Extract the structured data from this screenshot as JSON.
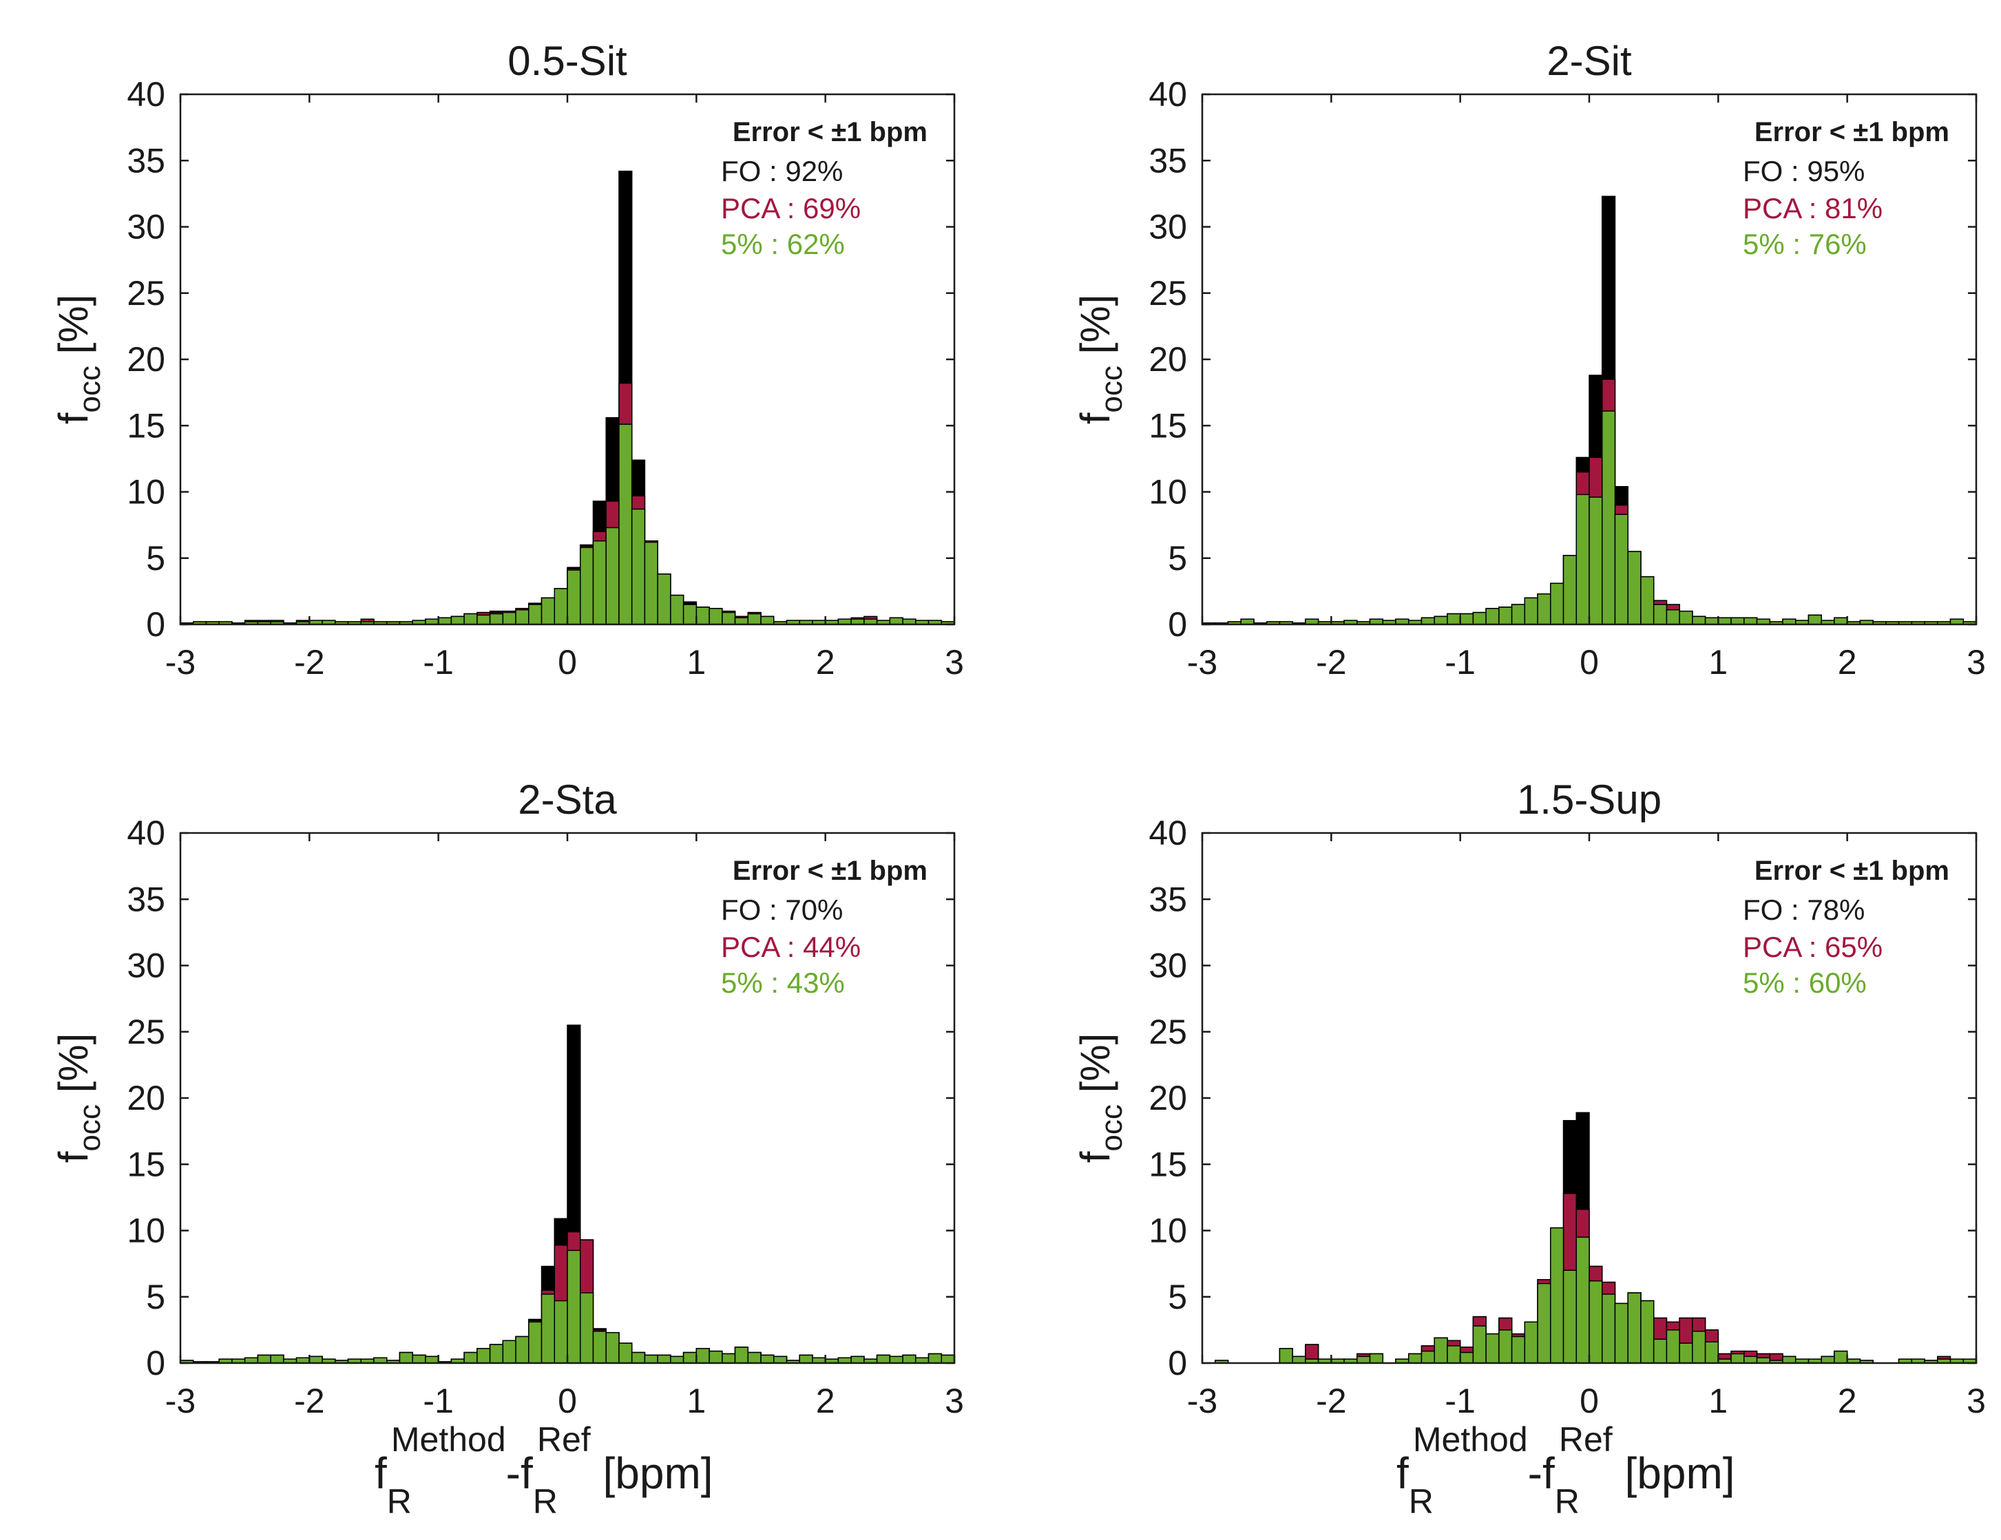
{
  "colors": {
    "fo": "#000000",
    "pca": "#a3173f",
    "five": "#6aab2e",
    "axis": "#1a1a1a"
  },
  "chart_data": [
    {
      "type": "bar",
      "title": "0.5-Sit",
      "ylabel": "f",
      "ylabel_sub": "occ",
      "ylabel_unit": "[%]",
      "xlim": [
        -3,
        3
      ],
      "ylim": [
        0,
        40
      ],
      "xticks": [
        "-3",
        "-2",
        "-1",
        "0",
        "1",
        "2",
        "3"
      ],
      "yticks": [
        "0",
        "5",
        "10",
        "15",
        "20",
        "25",
        "30",
        "35",
        "40"
      ],
      "bin_width": 0.1,
      "annotation": {
        "header": "Error < ±1 bpm",
        "fo": "FO : 92%",
        "pca": "PCA : 69%",
        "five": "5% : 62%"
      },
      "series": [
        {
          "name": "FO",
          "values": [
            0.1,
            0.2,
            0.2,
            0.2,
            0.1,
            0.3,
            0.3,
            0.3,
            0.1,
            0.3,
            0.3,
            0.3,
            0.2,
            0.2,
            0.3,
            0.2,
            0.2,
            0.2,
            0.3,
            0.4,
            0.5,
            0.6,
            0.8,
            0.9,
            1.0,
            1.0,
            1.2,
            1.6,
            2.0,
            2.7,
            4.3,
            6.0,
            9.3,
            15.6,
            34.2,
            12.4,
            6.3,
            3.8,
            2.2,
            1.7,
            1.3,
            1.2,
            1.0,
            0.6,
            0.9,
            0.6,
            0.2,
            0.3,
            0.3,
            0.3,
            0.3,
            0.4,
            0.4,
            0.5,
            0.3,
            0.5,
            0.4,
            0.3,
            0.3,
            0.2
          ]
        },
        {
          "name": "PCA",
          "values": [
            0.1,
            0.2,
            0.2,
            0.2,
            0.1,
            0.2,
            0.2,
            0.3,
            0.1,
            0.3,
            0.3,
            0.3,
            0.2,
            0.2,
            0.4,
            0.2,
            0.2,
            0.2,
            0.3,
            0.4,
            0.5,
            0.6,
            0.8,
            0.9,
            0.9,
            1.0,
            1.2,
            1.5,
            2.0,
            2.7,
            4.2,
            5.9,
            7.0,
            9.3,
            18.2,
            9.7,
            6.3,
            3.8,
            2.2,
            1.5,
            1.3,
            1.2,
            1.0,
            0.6,
            0.9,
            0.6,
            0.2,
            0.3,
            0.3,
            0.3,
            0.3,
            0.4,
            0.5,
            0.6,
            0.3,
            0.5,
            0.4,
            0.3,
            0.3,
            0.2
          ]
        },
        {
          "name": "5%",
          "values": [
            0.1,
            0.2,
            0.2,
            0.2,
            0.1,
            0.2,
            0.2,
            0.2,
            0.1,
            0.2,
            0.3,
            0.3,
            0.2,
            0.2,
            0.2,
            0.2,
            0.2,
            0.2,
            0.3,
            0.4,
            0.5,
            0.6,
            0.8,
            0.7,
            0.8,
            0.9,
            1.1,
            1.5,
            2.0,
            2.7,
            4.1,
            5.8,
            6.3,
            7.3,
            15.1,
            8.7,
            6.2,
            3.8,
            2.2,
            1.5,
            1.3,
            1.2,
            0.9,
            0.5,
            0.8,
            0.6,
            0.2,
            0.3,
            0.3,
            0.3,
            0.3,
            0.4,
            0.4,
            0.4,
            0.3,
            0.5,
            0.4,
            0.3,
            0.3,
            0.2
          ]
        }
      ]
    },
    {
      "type": "bar",
      "title": "2-Sit",
      "ylabel": "f",
      "ylabel_sub": "occ",
      "ylabel_unit": "[%]",
      "xlim": [
        -3,
        3
      ],
      "ylim": [
        0,
        40
      ],
      "xticks": [
        "-3",
        "-2",
        "-1",
        "0",
        "1",
        "2",
        "3"
      ],
      "yticks": [
        "0",
        "5",
        "10",
        "15",
        "20",
        "25",
        "30",
        "35",
        "40"
      ],
      "bin_width": 0.1,
      "annotation": {
        "header": "Error < ±1 bpm",
        "fo": "FO : 95%",
        "pca": "PCA : 81%",
        "five": "5% : 76%"
      },
      "series": [
        {
          "name": "FO",
          "values": [
            0.1,
            0.1,
            0.2,
            0.4,
            0.1,
            0.2,
            0.2,
            0.1,
            0.4,
            0.2,
            0.2,
            0.3,
            0.2,
            0.4,
            0.3,
            0.4,
            0.3,
            0.5,
            0.6,
            0.8,
            0.8,
            0.9,
            1.2,
            1.3,
            1.5,
            2.0,
            2.3,
            3.1,
            5.2,
            12.6,
            18.8,
            32.3,
            10.4,
            5.5,
            3.6,
            1.8,
            1.5,
            1.0,
            0.6,
            0.5,
            0.5,
            0.5,
            0.5,
            0.4,
            0.2,
            0.4,
            0.3,
            0.7,
            0.3,
            0.5,
            0.2,
            0.3,
            0.2,
            0.2,
            0.2,
            0.2,
            0.2,
            0.2,
            0.4,
            0.2
          ]
        },
        {
          "name": "PCA",
          "values": [
            0.1,
            0.1,
            0.2,
            0.4,
            0.1,
            0.2,
            0.2,
            0.1,
            0.4,
            0.2,
            0.2,
            0.3,
            0.2,
            0.4,
            0.3,
            0.4,
            0.3,
            0.5,
            0.6,
            0.8,
            0.8,
            0.9,
            1.2,
            1.3,
            1.5,
            2.0,
            2.3,
            3.1,
            5.2,
            11.5,
            12.6,
            18.5,
            9.0,
            5.5,
            3.6,
            1.8,
            1.5,
            1.0,
            0.6,
            0.5,
            0.5,
            0.5,
            0.5,
            0.4,
            0.2,
            0.4,
            0.3,
            0.7,
            0.3,
            0.5,
            0.2,
            0.3,
            0.2,
            0.2,
            0.2,
            0.2,
            0.2,
            0.2,
            0.4,
            0.2
          ]
        },
        {
          "name": "5%",
          "values": [
            0.1,
            0.1,
            0.2,
            0.4,
            0.1,
            0.2,
            0.2,
            0.1,
            0.4,
            0.2,
            0.2,
            0.3,
            0.2,
            0.4,
            0.3,
            0.4,
            0.3,
            0.5,
            0.6,
            0.8,
            0.8,
            0.9,
            1.2,
            1.3,
            1.5,
            2.0,
            2.3,
            3.1,
            5.2,
            9.8,
            9.6,
            16.1,
            8.3,
            5.5,
            3.6,
            1.5,
            1.1,
            1.0,
            0.6,
            0.5,
            0.5,
            0.5,
            0.5,
            0.4,
            0.2,
            0.4,
            0.3,
            0.7,
            0.3,
            0.5,
            0.2,
            0.3,
            0.2,
            0.2,
            0.2,
            0.2,
            0.2,
            0.2,
            0.4,
            0.2
          ]
        }
      ]
    },
    {
      "type": "bar",
      "title": "2-Sta",
      "ylabel": "f",
      "ylabel_sub": "occ",
      "ylabel_unit": "[%]",
      "xlabel_main": "f",
      "xlabel_sub": "R",
      "xlabel_sup": "Method",
      "xlabel_sep": "-f",
      "xlabel_sub2": "R",
      "xlabel_sup2": "Ref",
      "xlabel_unit": "[bpm]",
      "xlim": [
        -3,
        3
      ],
      "ylim": [
        0,
        40
      ],
      "xticks": [
        "-3",
        "-2",
        "-1",
        "0",
        "1",
        "2",
        "3"
      ],
      "yticks": [
        "0",
        "5",
        "10",
        "15",
        "20",
        "25",
        "30",
        "35",
        "40"
      ],
      "bin_width": 0.1,
      "annotation": {
        "header": "Error < ±1 bpm",
        "fo": "FO : 70%",
        "pca": "PCA : 44%",
        "five": "5% : 43%"
      },
      "series": [
        {
          "name": "FO",
          "values": [
            0.2,
            0.1,
            0.1,
            0.3,
            0.3,
            0.4,
            0.6,
            0.6,
            0.3,
            0.4,
            0.5,
            0.3,
            0.2,
            0.3,
            0.3,
            0.4,
            0.2,
            0.8,
            0.6,
            0.5,
            0.1,
            0.3,
            0.8,
            1.1,
            1.4,
            1.7,
            2.0,
            3.3,
            7.3,
            10.9,
            25.5,
            9.3,
            2.6,
            2.3,
            1.5,
            0.8,
            0.6,
            0.6,
            0.5,
            0.8,
            1.1,
            0.9,
            0.7,
            1.2,
            0.8,
            0.6,
            0.5,
            0.2,
            0.6,
            0.4,
            0.3,
            0.4,
            0.5,
            0.3,
            0.6,
            0.5,
            0.6,
            0.4,
            0.7,
            0.6
          ]
        },
        {
          "name": "PCA",
          "values": [
            0.2,
            0.1,
            0.1,
            0.3,
            0.3,
            0.4,
            0.6,
            0.6,
            0.3,
            0.4,
            0.5,
            0.3,
            0.2,
            0.3,
            0.3,
            0.4,
            0.2,
            0.8,
            0.6,
            0.5,
            0.1,
            0.3,
            0.8,
            1.1,
            1.4,
            1.7,
            2.0,
            3.2,
            5.5,
            8.9,
            9.9,
            9.3,
            2.5,
            2.3,
            1.5,
            0.8,
            0.6,
            0.6,
            0.5,
            0.8,
            1.1,
            0.9,
            0.7,
            1.2,
            0.8,
            0.6,
            0.5,
            0.2,
            0.6,
            0.4,
            0.3,
            0.4,
            0.5,
            0.3,
            0.6,
            0.5,
            0.6,
            0.4,
            0.7,
            0.6
          ]
        },
        {
          "name": "5%",
          "values": [
            0.2,
            0.1,
            0.1,
            0.3,
            0.3,
            0.4,
            0.6,
            0.6,
            0.3,
            0.4,
            0.5,
            0.3,
            0.2,
            0.3,
            0.3,
            0.4,
            0.2,
            0.8,
            0.6,
            0.5,
            0.1,
            0.3,
            0.8,
            1.1,
            1.4,
            1.7,
            2.0,
            3.1,
            5.2,
            4.7,
            8.5,
            5.3,
            2.4,
            2.3,
            1.5,
            0.8,
            0.6,
            0.6,
            0.5,
            0.8,
            1.1,
            0.9,
            0.7,
            1.2,
            0.8,
            0.6,
            0.5,
            0.2,
            0.6,
            0.4,
            0.3,
            0.4,
            0.5,
            0.3,
            0.6,
            0.5,
            0.6,
            0.4,
            0.7,
            0.6
          ]
        }
      ]
    },
    {
      "type": "bar",
      "title": "1.5-Sup",
      "ylabel": "f",
      "ylabel_sub": "occ",
      "ylabel_unit": "[%]",
      "xlabel_main": "f",
      "xlabel_sub": "R",
      "xlabel_sup": "Method",
      "xlabel_sep": "-f",
      "xlabel_sub2": "R",
      "xlabel_sup2": "Ref",
      "xlabel_unit": "[bpm]",
      "xlim": [
        -3,
        3
      ],
      "ylim": [
        0,
        40
      ],
      "xticks": [
        "-3",
        "-2",
        "-1",
        "0",
        "1",
        "2",
        "3"
      ],
      "yticks": [
        "0",
        "5",
        "10",
        "15",
        "20",
        "25",
        "30",
        "35",
        "40"
      ],
      "bin_width": 0.1,
      "annotation": {
        "header": "Error < ±1 bpm",
        "fo": "FO : 78%",
        "pca": "PCA : 65%",
        "five": "5% : 60%"
      },
      "series": [
        {
          "name": "FO",
          "values": [
            0,
            0.2,
            0,
            0,
            0,
            0,
            1.1,
            0.5,
            1.4,
            0.3,
            0.3,
            0.3,
            0.7,
            0.7,
            0,
            0.3,
            0.7,
            1.3,
            1.9,
            1.7,
            1.2,
            3.5,
            2.2,
            3.4,
            2.2,
            3.1,
            6.3,
            10.2,
            18.3,
            18.9,
            7.3,
            6.1,
            4.5,
            5.3,
            4.7,
            3.4,
            3.1,
            3.4,
            3.4,
            2.5,
            0.7,
            0.9,
            0.9,
            0.7,
            0.7,
            0.5,
            0.3,
            0.3,
            0.5,
            0.9,
            0.3,
            0.2,
            0,
            0,
            0.3,
            0.3,
            0.2,
            0.2,
            0.3,
            0.3
          ]
        },
        {
          "name": "PCA",
          "values": [
            0,
            0.2,
            0,
            0,
            0,
            0,
            1.1,
            0.5,
            1.4,
            0.3,
            0.3,
            0.3,
            0.7,
            0.7,
            0,
            0.3,
            0.7,
            1.3,
            1.9,
            1.7,
            1.2,
            3.5,
            2.2,
            3.4,
            2.2,
            3.1,
            6.3,
            10.2,
            12.8,
            11.6,
            7.3,
            6.1,
            4.5,
            5.3,
            4.7,
            3.4,
            3.1,
            3.4,
            3.4,
            2.5,
            0.7,
            0.9,
            0.9,
            0.7,
            0.7,
            0.5,
            0.3,
            0.3,
            0.5,
            0.9,
            0.3,
            0.2,
            0,
            0,
            0.3,
            0.3,
            0.2,
            0.5,
            0.3,
            0.3
          ]
        },
        {
          "name": "5%",
          "values": [
            0,
            0.2,
            0,
            0,
            0,
            0,
            1.1,
            0.5,
            0.3,
            0.3,
            0.3,
            0.3,
            0.5,
            0.7,
            0,
            0.3,
            0.7,
            0.9,
            1.9,
            1.3,
            0.8,
            2.8,
            2.2,
            2.5,
            2.0,
            3.1,
            6.0,
            10.2,
            7.0,
            9.5,
            6.2,
            5.2,
            4.5,
            5.3,
            4.7,
            1.8,
            2.5,
            1.5,
            2.4,
            1.6,
            0.3,
            0.7,
            0.5,
            0.4,
            0.2,
            0.5,
            0.3,
            0.3,
            0.5,
            0.9,
            0.3,
            0.2,
            0,
            0,
            0.3,
            0.3,
            0.2,
            0.3,
            0.3,
            0.3
          ]
        }
      ]
    }
  ]
}
